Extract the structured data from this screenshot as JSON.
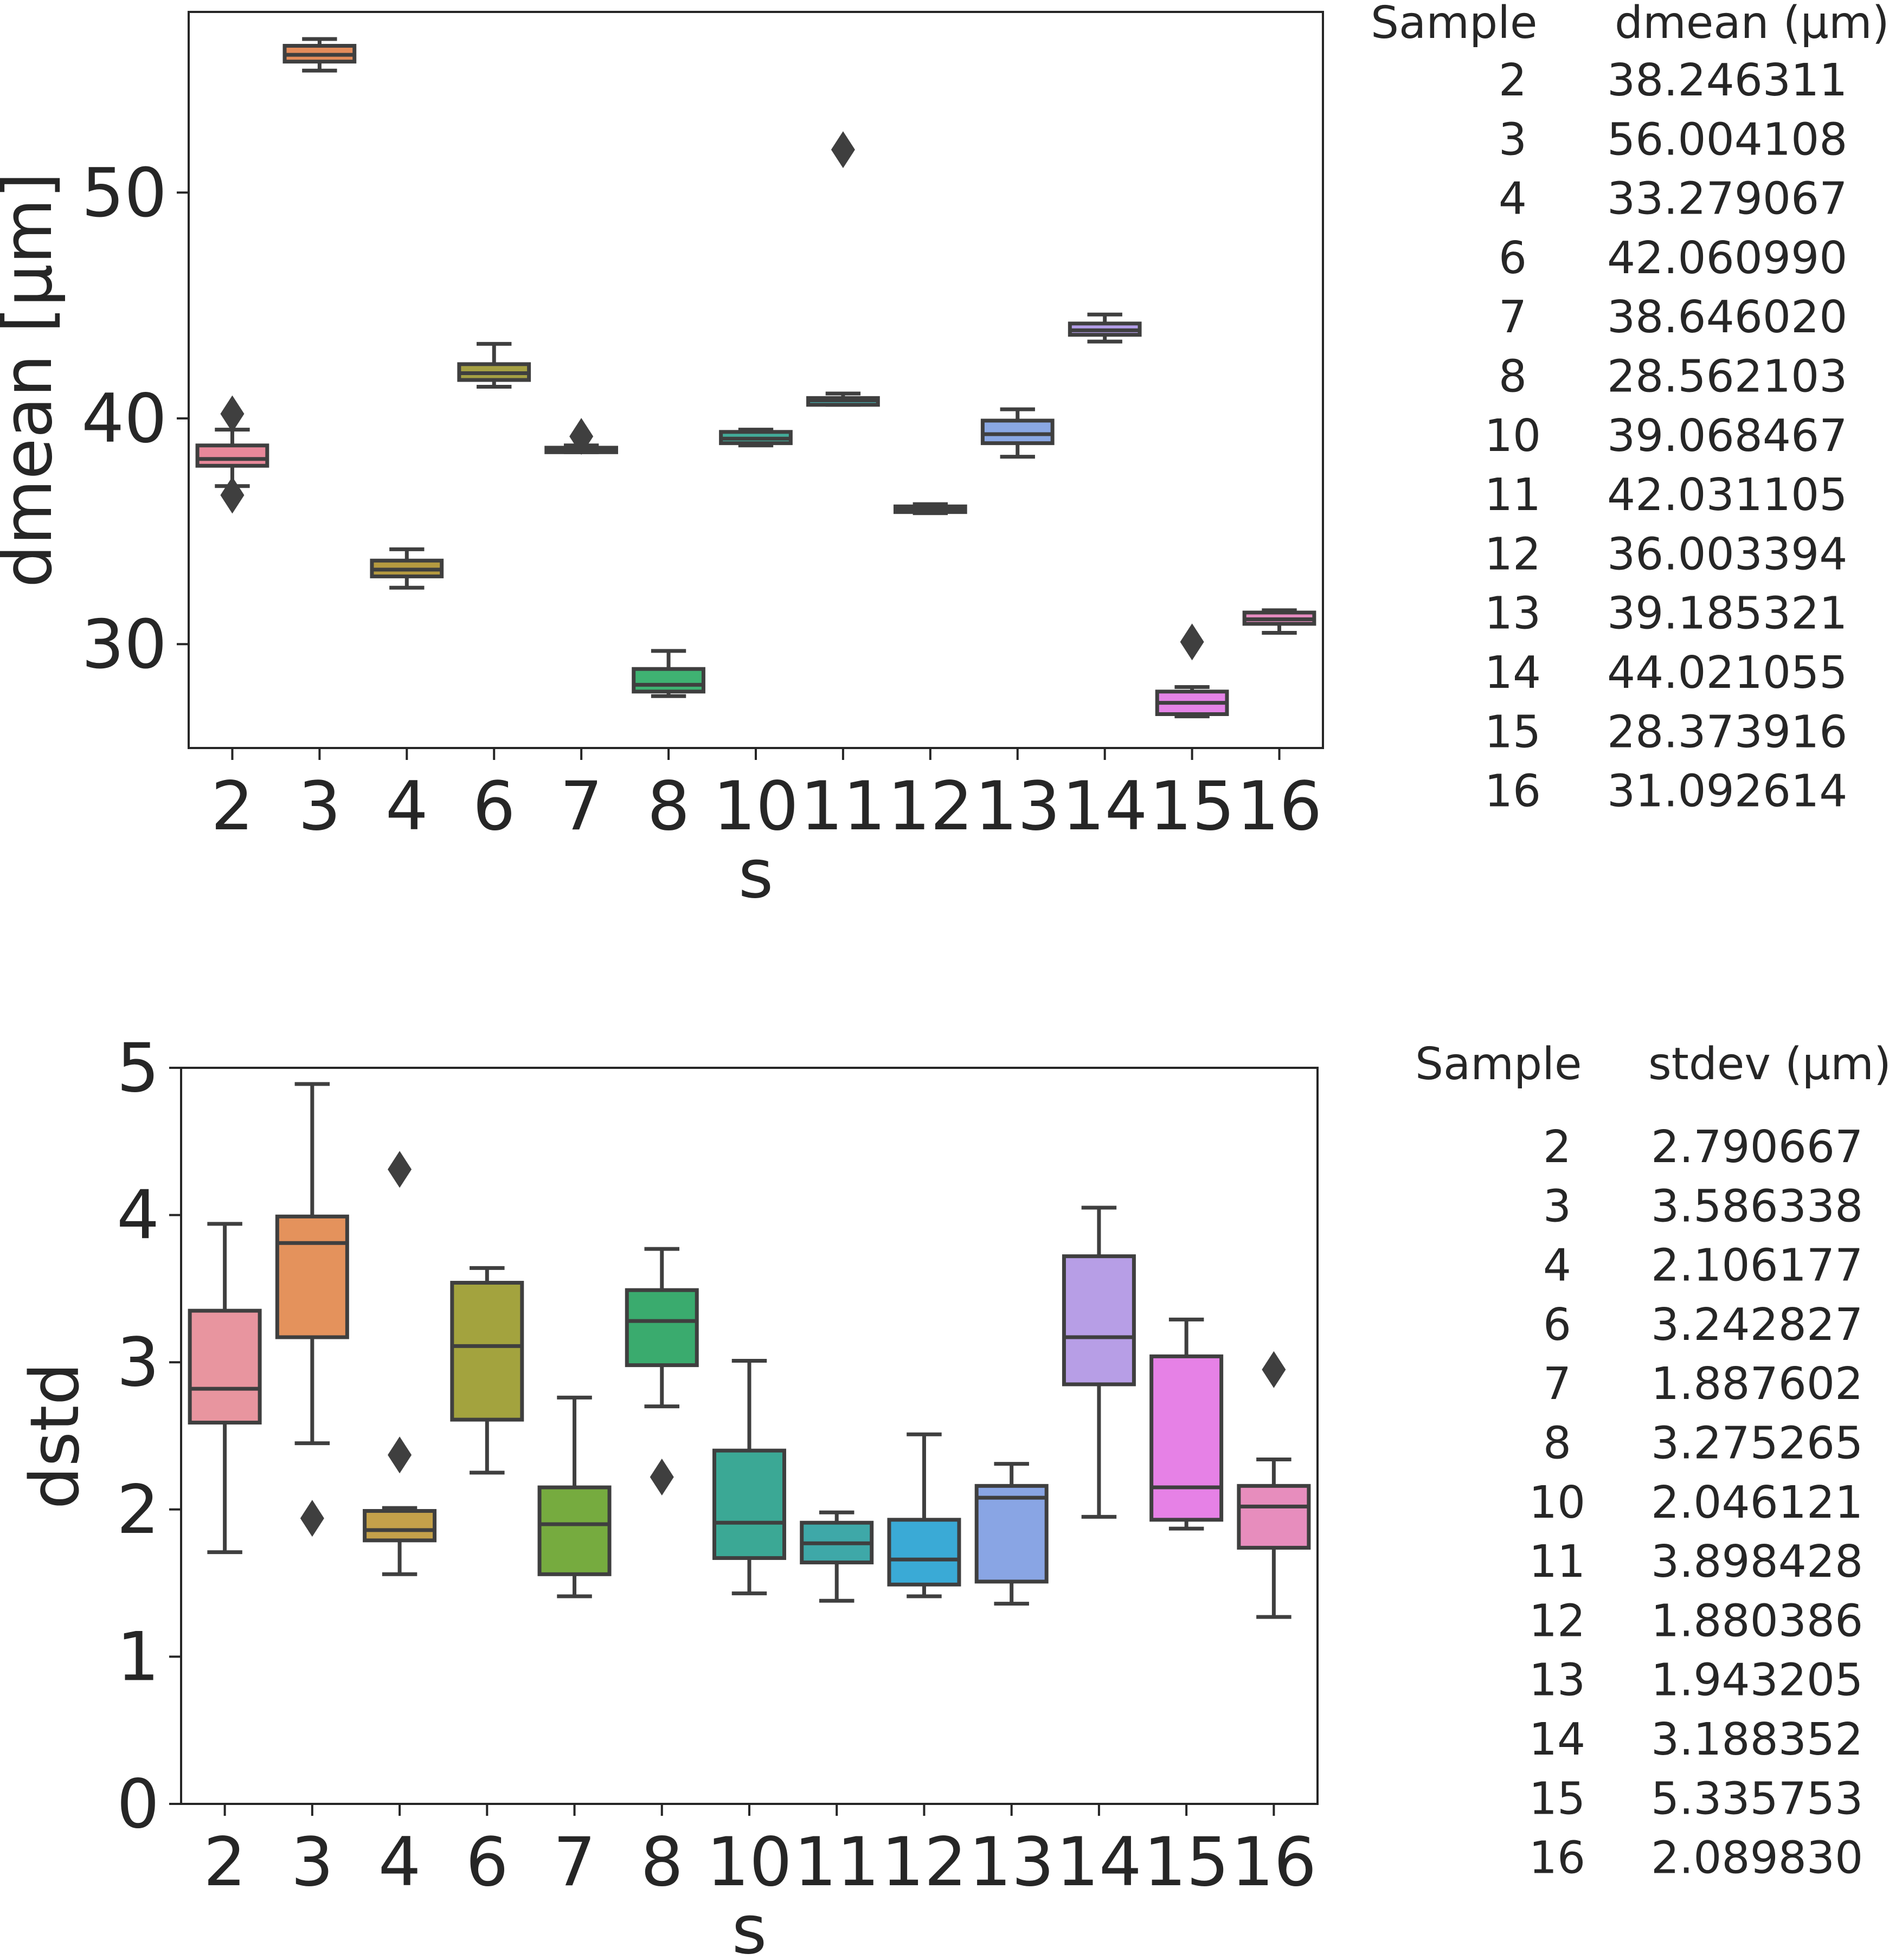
{
  "chart_data": [
    {
      "type": "box",
      "xlabel": "s",
      "ylabel": "dmean [µm]",
      "ylim": [
        25.4,
        58.0
      ],
      "yticks": [
        30,
        40,
        50
      ],
      "categories": [
        "2",
        "3",
        "4",
        "6",
        "7",
        "8",
        "10",
        "11",
        "12",
        "13",
        "14",
        "15",
        "16"
      ],
      "colors": [
        "#e8889a",
        "#e48c5a",
        "#b59a40",
        "#a5a043",
        "#8db048",
        "#3fb272",
        "#43ab99",
        "#47aaaa",
        "#47a9d2",
        "#8aa8e4",
        "#b39ee8",
        "#e483e6",
        "#e58bbf"
      ],
      "boxes": [
        {
          "whislo": 37.0,
          "q1": 37.9,
          "med": 38.2,
          "q3": 38.8,
          "whishi": 39.5,
          "fliers": [
            40.2,
            36.6
          ]
        },
        {
          "whislo": 55.4,
          "q1": 55.8,
          "med": 56.1,
          "q3": 56.5,
          "whishi": 56.8,
          "fliers": []
        },
        {
          "whislo": 32.5,
          "q1": 33.0,
          "med": 33.3,
          "q3": 33.7,
          "whishi": 34.2,
          "fliers": []
        },
        {
          "whislo": 41.4,
          "q1": 41.7,
          "med": 42.0,
          "q3": 42.4,
          "whishi": 43.3,
          "fliers": []
        },
        {
          "whislo": 38.5,
          "q1": 38.5,
          "med": 38.6,
          "q3": 38.7,
          "whishi": 38.8,
          "fliers": [
            39.2
          ]
        },
        {
          "whislo": 27.7,
          "q1": 27.9,
          "med": 28.2,
          "q3": 28.9,
          "whishi": 29.7,
          "fliers": []
        },
        {
          "whislo": 38.8,
          "q1": 38.9,
          "med": 39.1,
          "q3": 39.4,
          "whishi": 39.5,
          "fliers": []
        },
        {
          "whislo": 40.6,
          "q1": 40.6,
          "med": 40.8,
          "q3": 40.9,
          "whishi": 41.1,
          "fliers": [
            51.9
          ]
        },
        {
          "whislo": 35.8,
          "q1": 35.85,
          "med": 36.0,
          "q3": 36.1,
          "whishi": 36.2,
          "fliers": []
        },
        {
          "whislo": 38.3,
          "q1": 38.9,
          "med": 39.3,
          "q3": 39.9,
          "whishi": 40.4,
          "fliers": []
        },
        {
          "whislo": 43.4,
          "q1": 43.7,
          "med": 43.9,
          "q3": 44.2,
          "whishi": 44.6,
          "fliers": []
        },
        {
          "whislo": 26.8,
          "q1": 26.9,
          "med": 27.4,
          "q3": 27.9,
          "whishi": 28.1,
          "fliers": [
            30.1
          ]
        },
        {
          "whislo": 30.5,
          "q1": 30.9,
          "med": 31.1,
          "q3": 31.4,
          "whishi": 31.5,
          "fliers": []
        }
      ],
      "table": {
        "headers": [
          "Sample",
          "dmean (µm)"
        ],
        "rows": [
          [
            "2",
            "38.246311"
          ],
          [
            "3",
            "56.004108"
          ],
          [
            "4",
            "33.279067"
          ],
          [
            "6",
            "42.060990"
          ],
          [
            "7",
            "38.646020"
          ],
          [
            "8",
            "28.562103"
          ],
          [
            "10",
            "39.068467"
          ],
          [
            "11",
            "42.031105"
          ],
          [
            "12",
            "36.003394"
          ],
          [
            "13",
            "39.185321"
          ],
          [
            "14",
            "44.021055"
          ],
          [
            "15",
            "28.373916"
          ],
          [
            "16",
            "31.092614"
          ]
        ]
      }
    },
    {
      "type": "box",
      "xlabel": "s",
      "ylabel": "dstd",
      "ylim": [
        0,
        5
      ],
      "yticks": [
        0,
        1,
        2,
        3,
        4,
        5
      ],
      "categories": [
        "2",
        "3",
        "4",
        "6",
        "7",
        "8",
        "10",
        "11",
        "12",
        "13",
        "14",
        "15",
        "16"
      ],
      "colors": [
        "#e8959f",
        "#e4925c",
        "#c4a14a",
        "#a3a33e",
        "#76ab3f",
        "#3aab6e",
        "#3ba895",
        "#3ea8a8",
        "#3aaad6",
        "#89a5e4",
        "#b79ee6",
        "#e681e6",
        "#e78dbd"
      ],
      "boxes": [
        {
          "whislo": 1.71,
          "q1": 2.59,
          "med": 2.82,
          "q3": 3.35,
          "whishi": 3.94,
          "fliers": []
        },
        {
          "whislo": 2.45,
          "q1": 3.17,
          "med": 3.81,
          "q3": 3.99,
          "whishi": 4.89,
          "fliers": [
            1.94
          ]
        },
        {
          "whislo": 1.56,
          "q1": 1.79,
          "med": 1.86,
          "q3": 1.99,
          "whishi": 2.01,
          "fliers": [
            4.31,
            2.37
          ]
        },
        {
          "whislo": 2.25,
          "q1": 2.61,
          "med": 3.11,
          "q3": 3.54,
          "whishi": 3.64,
          "fliers": []
        },
        {
          "whislo": 1.41,
          "q1": 1.56,
          "med": 1.9,
          "q3": 2.15,
          "whishi": 2.76,
          "fliers": []
        },
        {
          "whislo": 2.7,
          "q1": 2.98,
          "med": 3.28,
          "q3": 3.49,
          "whishi": 3.77,
          "fliers": [
            2.22
          ]
        },
        {
          "whislo": 1.43,
          "q1": 1.67,
          "med": 1.91,
          "q3": 2.4,
          "whishi": 3.01,
          "fliers": []
        },
        {
          "whislo": 1.38,
          "q1": 1.64,
          "med": 1.77,
          "q3": 1.91,
          "whishi": 1.98,
          "fliers": []
        },
        {
          "whislo": 1.41,
          "q1": 1.49,
          "med": 1.66,
          "q3": 1.93,
          "whishi": 2.51,
          "fliers": []
        },
        {
          "whislo": 1.36,
          "q1": 1.51,
          "med": 2.08,
          "q3": 2.16,
          "whishi": 2.31,
          "fliers": []
        },
        {
          "whislo": 1.95,
          "q1": 2.85,
          "med": 3.17,
          "q3": 3.72,
          "whishi": 4.05,
          "fliers": []
        },
        {
          "whislo": 1.87,
          "q1": 1.93,
          "med": 2.15,
          "q3": 3.04,
          "whishi": 3.29,
          "fliers": []
        },
        {
          "whislo": 1.27,
          "q1": 1.74,
          "med": 2.02,
          "q3": 2.16,
          "whishi": 2.34,
          "fliers": [
            2.95
          ]
        }
      ],
      "table": {
        "headers": [
          "Sample",
          "stdev (µm)"
        ],
        "rows": [
          [
            "2",
            "2.790667"
          ],
          [
            "3",
            "3.586338"
          ],
          [
            "4",
            "2.106177"
          ],
          [
            "6",
            "3.242827"
          ],
          [
            "7",
            "1.887602"
          ],
          [
            "8",
            "3.275265"
          ],
          [
            "10",
            "2.046121"
          ],
          [
            "11",
            "3.898428"
          ],
          [
            "12",
            "1.880386"
          ],
          [
            "13",
            "1.943205"
          ],
          [
            "14",
            "3.188352"
          ],
          [
            "15",
            "5.335753"
          ],
          [
            "16",
            "2.089830"
          ]
        ]
      }
    }
  ]
}
